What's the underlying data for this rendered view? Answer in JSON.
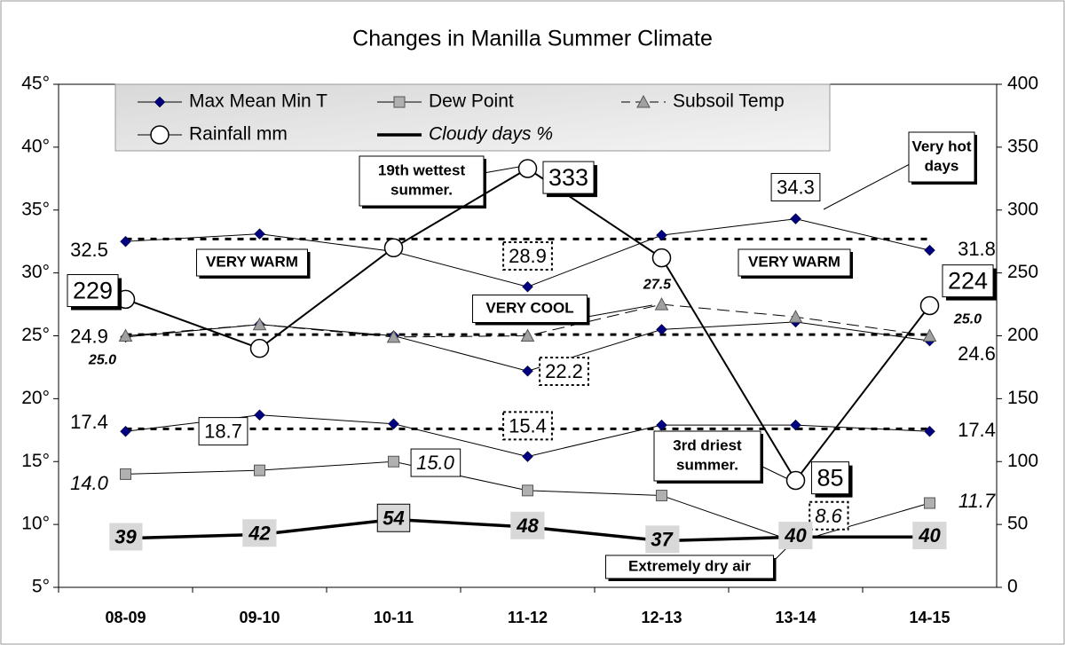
{
  "chart_data": {
    "type": "line",
    "title": "Changes in Manilla Summer Climate",
    "categories": [
      "08-09",
      "09-10",
      "10-11",
      "11-12",
      "12-13",
      "13-14",
      "14-15"
    ],
    "ylim": [
      5,
      45
    ],
    "yticks": [
      {
        "value": 5,
        "label": "5°"
      },
      {
        "value": 10,
        "label": "10°"
      },
      {
        "value": 15,
        "label": "15°"
      },
      {
        "value": 20,
        "label": "20°"
      },
      {
        "value": 25,
        "label": "25°"
      },
      {
        "value": 30,
        "label": "30°"
      },
      {
        "value": 35,
        "label": "35°"
      },
      {
        "value": 40,
        "label": "40°"
      },
      {
        "value": 45,
        "label": "45°"
      }
    ],
    "y2lim": [
      0,
      400
    ],
    "y2ticks": [
      0,
      50,
      100,
      150,
      200,
      250,
      300,
      350,
      400
    ],
    "series": [
      {
        "name": "Max Mean Min T",
        "color": "#000080",
        "lines": [
          {
            "values": [
              32.5,
              33.1,
              31.7,
              28.9,
              33.0,
              34.3,
              31.8
            ],
            "value_labels": [
              "32.5",
              null,
              null,
              "28.9",
              null,
              "34.3",
              "31.8"
            ]
          },
          {
            "values": [
              24.9,
              25.9,
              25.0,
              22.2,
              25.5,
              26.1,
              24.6
            ],
            "value_labels": [
              "24.9",
              null,
              null,
              "22.2",
              null,
              null,
              "24.6"
            ]
          },
          {
            "values": [
              17.4,
              18.7,
              18.0,
              15.4,
              17.9,
              17.9,
              17.4
            ],
            "value_labels": [
              "17.4",
              "18.7",
              null,
              "15.4",
              null,
              null,
              "17.4"
            ]
          }
        ]
      },
      {
        "name": "Dew Point",
        "color": "#b0b0b0",
        "values": [
          14.0,
          14.3,
          15.0,
          12.7,
          12.3,
          8.6,
          11.7
        ],
        "value_labels": [
          "14.0",
          null,
          "15.0",
          null,
          null,
          "8.6",
          "11.7"
        ]
      },
      {
        "name": "Subsoil Temp",
        "color": "#a0a0a0",
        "values": [
          25.0,
          25.9,
          24.9,
          25.0,
          27.5,
          26.5,
          25.0
        ],
        "value_labels": [
          "25.0",
          null,
          null,
          null,
          "27.5",
          null,
          "25.0"
        ]
      },
      {
        "name": "Rainfall mm",
        "color": "#ffffff",
        "axis": "y2",
        "values": [
          229,
          190,
          270,
          333,
          262,
          85,
          224
        ],
        "value_labels": [
          "229",
          null,
          null,
          "333",
          null,
          "85",
          "224"
        ]
      },
      {
        "name": "Cloudy days %",
        "color": "#000000",
        "axis": "y2",
        "values": [
          39,
          42,
          54,
          48,
          37,
          40,
          40
        ]
      }
    ],
    "averages": [
      32.7,
      25.1,
      17.6
    ],
    "annotations": [
      [
        "VERY WARM"
      ],
      [
        "VERY WARM"
      ],
      [
        "VERY COOL"
      ],
      [
        "19th wettest",
        "summer."
      ],
      [
        "Very hot",
        "days"
      ],
      [
        "3rd driest",
        "summer."
      ],
      [
        "Extremely dry air"
      ]
    ]
  }
}
